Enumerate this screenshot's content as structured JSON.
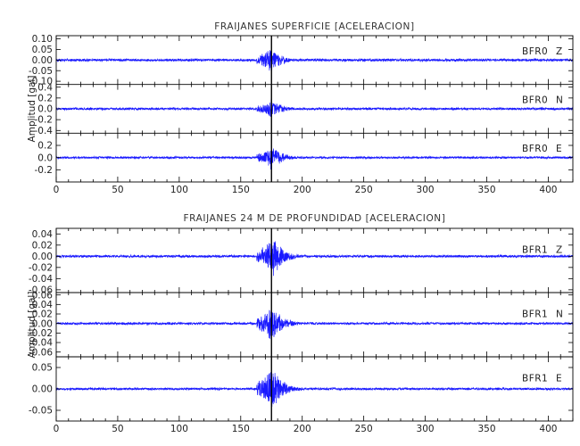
{
  "chart_data": [
    {
      "type": "line",
      "title": "FRAIJANES SUPERFICIE [ACELERACION]",
      "ylabel": "Amplitud [gal]",
      "xlim": [
        0,
        420
      ],
      "x_ticks": [
        0,
        50,
        100,
        150,
        200,
        250,
        300,
        350,
        400
      ],
      "x_tick_labels": [
        "0",
        "50",
        "100",
        "150",
        "200",
        "250",
        "300",
        "350",
        "400"
      ],
      "event_time": 175,
      "series": [
        {
          "name": "BFR0 Z",
          "station": "BFR0",
          "component": "Z",
          "ylim": [
            -0.115,
            0.115
          ],
          "y_ticks": [
            -0.1,
            -0.05,
            0.0,
            0.05,
            0.1
          ],
          "y_tick_labels": [
            "-0.10",
            "-0.05",
            "0.00",
            "0.05",
            "0.10"
          ],
          "noise": 0.007,
          "onset": 163,
          "peak_time": 174,
          "peak_amplitude": 0.07
        },
        {
          "name": "BFR0 N",
          "station": "BFR0",
          "component": "N",
          "ylim": [
            -0.45,
            0.45
          ],
          "y_ticks": [
            -0.4,
            -0.2,
            0.0,
            0.2,
            0.4
          ],
          "y_tick_labels": [
            "-0.4",
            "-0.2",
            "0.0",
            "0.2",
            "0.4"
          ],
          "noise": 0.025,
          "onset": 163,
          "peak_time": 175,
          "peak_amplitude": 0.2
        },
        {
          "name": "BFR0 E",
          "station": "BFR0",
          "component": "E",
          "ylim": [
            -0.4,
            0.4
          ],
          "y_ticks": [
            -0.2,
            0.0,
            0.2
          ],
          "y_tick_labels": [
            "-0.2",
            "0.0",
            "0.2"
          ],
          "noise": 0.02,
          "onset": 163,
          "peak_time": 175,
          "peak_amplitude": 0.22
        }
      ]
    },
    {
      "type": "line",
      "title": "FRAIJANES 24 M DE PROFUNDIDAD [ACELERACION]",
      "ylabel": "Amplitud [gal]",
      "xlim": [
        0,
        420
      ],
      "x_ticks": [
        0,
        50,
        100,
        150,
        200,
        250,
        300,
        350,
        400
      ],
      "x_tick_labels": [
        "0",
        "50",
        "100",
        "150",
        "200",
        "250",
        "300",
        "350",
        "400"
      ],
      "event_time": 175,
      "series": [
        {
          "name": "BFR1 Z",
          "station": "BFR1",
          "component": "Z",
          "ylim": [
            -0.065,
            0.05
          ],
          "y_ticks": [
            -0.06,
            -0.04,
            -0.02,
            0.0,
            0.02,
            0.04
          ],
          "y_tick_labels": [
            "-0.06",
            "-0.04",
            "-0.02",
            "0.00",
            "0.02",
            "0.04"
          ],
          "noise": 0.0025,
          "onset": 163,
          "peak_time": 176,
          "peak_amplitude": 0.04
        },
        {
          "name": "BFR1 N",
          "station": "BFR1",
          "component": "N",
          "ylim": [
            -0.07,
            0.065
          ],
          "y_ticks": [
            -0.06,
            -0.04,
            -0.02,
            0.0,
            0.02,
            0.04,
            0.06
          ],
          "y_tick_labels": [
            "-0.06",
            "-0.04",
            "-0.02",
            "0.00",
            "0.02",
            "0.04",
            "0.06"
          ],
          "noise": 0.0028,
          "onset": 163,
          "peak_time": 175,
          "peak_amplitude": 0.045
        },
        {
          "name": "BFR1 E",
          "station": "BFR1",
          "component": "E",
          "ylim": [
            -0.075,
            0.075
          ],
          "y_ticks": [
            -0.05,
            0.0,
            0.05
          ],
          "y_tick_labels": [
            "-0.05",
            "0.00",
            "0.05"
          ],
          "noise": 0.003,
          "onset": 163,
          "peak_time": 175,
          "peak_amplitude": 0.06
        }
      ]
    }
  ],
  "colors": {
    "trace": "#1a1aff",
    "axes": "#000000",
    "background": "#ffffff"
  }
}
